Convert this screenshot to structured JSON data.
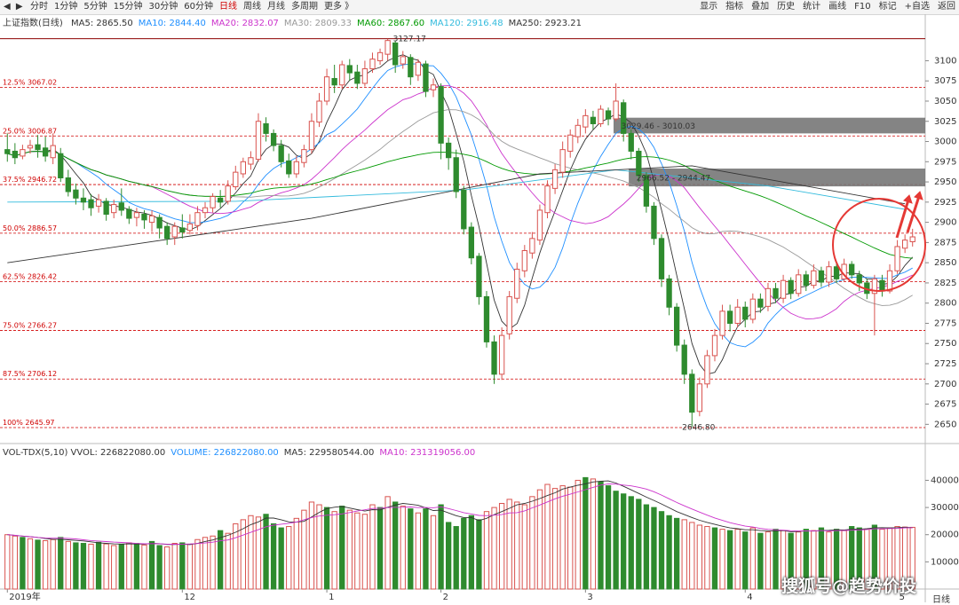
{
  "toolbar": {
    "nav_back": "◀",
    "nav_fwd": "▶",
    "periods": [
      "分时",
      "1分钟",
      "5分钟",
      "15分钟",
      "30分钟",
      "60分钟",
      "日线",
      "周线",
      "月线",
      "多周期",
      "更多 》"
    ],
    "active_period": 6,
    "tools": [
      "显示",
      "指标",
      "叠加",
      "历史",
      "统计",
      "画线",
      "F10",
      "标记",
      "+自选",
      "返回"
    ]
  },
  "price_legend": {
    "title": "上证指数(日线)",
    "items": [
      {
        "label": "MA5: 2865.50",
        "color": "#333333"
      },
      {
        "label": "MA10: 2844.40",
        "color": "#1f8fff"
      },
      {
        "label": "MA20: 2832.07",
        "color": "#cc33cc"
      },
      {
        "label": "MA30: 2809.33",
        "color": "#999999"
      },
      {
        "label": "MA60: 2867.60",
        "color": "#009900"
      },
      {
        "label": "MA120: 2916.48",
        "color": "#33bbdd"
      },
      {
        "label": "MA250: 2923.21",
        "color": "#333333"
      }
    ]
  },
  "volume_legend": {
    "items": [
      {
        "label": "VOL-TDX(5,10)  VVOL: 226822080.00",
        "color": "#333333"
      },
      {
        "label": "VOLUME: 226822080.00",
        "color": "#1f8fff"
      },
      {
        "label": "MA5: 229580544.00",
        "color": "#333333"
      },
      {
        "label": "MA10: 231319056.00",
        "color": "#cc33cc"
      }
    ]
  },
  "watermark": "搜狐号@趋势价投",
  "frequency_label": "日线",
  "colors": {
    "up": "#d9534f",
    "down": "#2e8b2e",
    "ref_line": "#d00000",
    "zone": "#777777",
    "circle": "#e53935"
  },
  "chart_data": [
    {
      "type": "candlestick",
      "title": "上证指数(日线)",
      "ylim": [
        2635,
        3140
      ],
      "y_ticks": [
        2650,
        2675,
        2700,
        2725,
        2750,
        2775,
        2800,
        2825,
        2850,
        2875,
        2900,
        2925,
        2950,
        2975,
        3000,
        3025,
        3050,
        3075,
        3100
      ],
      "x_labels": [
        {
          "label": "2019年",
          "index": 0
        },
        {
          "label": "12",
          "index": 23
        },
        {
          "label": "1",
          "index": 42
        },
        {
          "label": "2",
          "index": 57
        },
        {
          "label": "3",
          "index": 76
        },
        {
          "label": "4",
          "index": 97
        },
        {
          "label": "5",
          "index": 117
        }
      ],
      "fib_levels": [
        {
          "label": "12.5% 3067.02",
          "value": 3067.02
        },
        {
          "label": "25.0% 3006.87",
          "value": 3006.87
        },
        {
          "label": "37.5% 2946.72",
          "value": 2946.72
        },
        {
          "label": "50.0% 2886.57",
          "value": 2886.57
        },
        {
          "label": "62.5% 2826.42",
          "value": 2826.42
        },
        {
          "label": "75.0% 2766.27",
          "value": 2766.27
        },
        {
          "label": "87.5% 2706.12",
          "value": 2706.12
        },
        {
          "label": "100% 2645.97",
          "value": 2645.97
        }
      ],
      "top_level": 3127.17,
      "annotations": [
        {
          "text": "3127.17",
          "index": 50,
          "value": 3127.17
        },
        {
          "text": "3029.46 - 3010.03",
          "index": 80,
          "value": 3019
        },
        {
          "text": "2966.52 - 2944.47",
          "index": 82,
          "value": 2955
        },
        {
          "text": "2646.80",
          "index": 88,
          "value": 2646.8
        }
      ],
      "zones": [
        {
          "from_index": 80,
          "top": 3029.46,
          "bottom": 3010.03
        },
        {
          "from_index": 82,
          "top": 2966.52,
          "bottom": 2944.47
        }
      ],
      "candles": [
        [
          2990,
          2985,
          3010,
          2975
        ],
        [
          2988,
          2980,
          2998,
          2972
        ],
        [
          2982,
          2990,
          2996,
          2978
        ],
        [
          2992,
          2995,
          3002,
          2985
        ],
        [
          2996,
          2990,
          3008,
          2980
        ],
        [
          2992,
          2982,
          3006,
          2975
        ],
        [
          2980,
          2995,
          3010,
          2972
        ],
        [
          2985,
          2955,
          2992,
          2950
        ],
        [
          2955,
          2938,
          2965,
          2932
        ],
        [
          2940,
          2930,
          2948,
          2922
        ],
        [
          2930,
          2925,
          2942,
          2915
        ],
        [
          2928,
          2918,
          2935,
          2908
        ],
        [
          2920,
          2928,
          2935,
          2912
        ],
        [
          2926,
          2910,
          2930,
          2902
        ],
        [
          2912,
          2922,
          2928,
          2905
        ],
        [
          2924,
          2915,
          2942,
          2908
        ],
        [
          2916,
          2905,
          2920,
          2898
        ],
        [
          2906,
          2912,
          2918,
          2895
        ],
        [
          2910,
          2903,
          2915,
          2892
        ],
        [
          2900,
          2908,
          2915,
          2888
        ],
        [
          2906,
          2893,
          2910,
          2880
        ],
        [
          2895,
          2880,
          2900,
          2872
        ],
        [
          2882,
          2895,
          2900,
          2872
        ],
        [
          2893,
          2888,
          2910,
          2880
        ],
        [
          2890,
          2898,
          2910,
          2885
        ],
        [
          2896,
          2912,
          2920,
          2890
        ],
        [
          2912,
          2918,
          2925,
          2905
        ],
        [
          2918,
          2932,
          2936,
          2912
        ],
        [
          2930,
          2925,
          2940,
          2918
        ],
        [
          2926,
          2945,
          2952,
          2922
        ],
        [
          2944,
          2962,
          2970,
          2940
        ],
        [
          2960,
          2975,
          2980,
          2955
        ],
        [
          2972,
          2980,
          2988,
          2965
        ],
        [
          2978,
          3025,
          3035,
          2975
        ],
        [
          3022,
          3010,
          3030,
          3000
        ],
        [
          3010,
          2995,
          3015,
          2988
        ],
        [
          2995,
          2975,
          3002,
          2968
        ],
        [
          2976,
          2960,
          2985,
          2955
        ],
        [
          2960,
          2975,
          2982,
          2955
        ],
        [
          2974,
          2990,
          2996,
          2968
        ],
        [
          2990,
          3025,
          3035,
          2985
        ],
        [
          3024,
          3050,
          3060,
          3018
        ],
        [
          3050,
          3080,
          3090,
          3045
        ],
        [
          3078,
          3070,
          3095,
          3060
        ],
        [
          3070,
          3095,
          3100,
          3065
        ],
        [
          3094,
          3085,
          3102,
          3075
        ],
        [
          3086,
          3072,
          3095,
          3065
        ],
        [
          3072,
          3090,
          3100,
          3068
        ],
        [
          3090,
          3102,
          3110,
          3085
        ],
        [
          3100,
          3110,
          3115,
          3095
        ],
        [
          3108,
          3125,
          3127,
          3100
        ],
        [
          3122,
          3095,
          3125,
          3085
        ],
        [
          3096,
          3105,
          3112,
          3090
        ],
        [
          3104,
          3080,
          3108,
          3070
        ],
        [
          3082,
          3098,
          3102,
          3075
        ],
        [
          3096,
          3062,
          3100,
          3055
        ],
        [
          3064,
          3070,
          3078,
          3055
        ],
        [
          3068,
          2998,
          3072,
          2978
        ],
        [
          2998,
          2980,
          3005,
          2965
        ],
        [
          2980,
          2938,
          2990,
          2930
        ],
        [
          2940,
          2892,
          2945,
          2885
        ],
        [
          2894,
          2856,
          2900,
          2848
        ],
        [
          2858,
          2808,
          2862,
          2798
        ],
        [
          2808,
          2752,
          2815,
          2745
        ],
        [
          2752,
          2712,
          2760,
          2700
        ],
        [
          2712,
          2760,
          2770,
          2705
        ],
        [
          2762,
          2808,
          2815,
          2755
        ],
        [
          2806,
          2842,
          2850,
          2800
        ],
        [
          2840,
          2865,
          2872,
          2832
        ],
        [
          2862,
          2880,
          2888,
          2855
        ],
        [
          2878,
          2915,
          2922,
          2872
        ],
        [
          2912,
          2945,
          2952,
          2905
        ],
        [
          2942,
          2965,
          2972,
          2935
        ],
        [
          2962,
          2990,
          3000,
          2955
        ],
        [
          2988,
          3008,
          3015,
          2980
        ],
        [
          3006,
          3020,
          3028,
          2998
        ],
        [
          3018,
          3032,
          3040,
          3010
        ],
        [
          3030,
          3022,
          3038,
          3015
        ],
        [
          3022,
          3040,
          3045,
          3018
        ],
        [
          3038,
          3028,
          3042,
          3020
        ],
        [
          3028,
          3050,
          3072,
          3025
        ],
        [
          3048,
          3010,
          3052,
          3000
        ],
        [
          3010,
          2988,
          3015,
          2978
        ],
        [
          2988,
          2958,
          2992,
          2950
        ],
        [
          2958,
          2920,
          2962,
          2912
        ],
        [
          2920,
          2880,
          2925,
          2872
        ],
        [
          2880,
          2830,
          2885,
          2820
        ],
        [
          2830,
          2795,
          2835,
          2785
        ],
        [
          2795,
          2748,
          2800,
          2740
        ],
        [
          2748,
          2712,
          2755,
          2700
        ],
        [
          2712,
          2665,
          2718,
          2646.8
        ],
        [
          2666,
          2700,
          2708,
          2660
        ],
        [
          2700,
          2735,
          2742,
          2695
        ],
        [
          2735,
          2760,
          2768,
          2728
        ],
        [
          2760,
          2790,
          2798,
          2755
        ],
        [
          2790,
          2775,
          2798,
          2765
        ],
        [
          2775,
          2795,
          2805,
          2770
        ],
        [
          2795,
          2780,
          2802,
          2770
        ],
        [
          2780,
          2805,
          2812,
          2775
        ],
        [
          2805,
          2795,
          2812,
          2788
        ],
        [
          2796,
          2818,
          2825,
          2790
        ],
        [
          2818,
          2806,
          2825,
          2800
        ],
        [
          2806,
          2828,
          2835,
          2800
        ],
        [
          2828,
          2812,
          2832,
          2805
        ],
        [
          2812,
          2835,
          2842,
          2808
        ],
        [
          2835,
          2822,
          2840,
          2815
        ],
        [
          2822,
          2840,
          2848,
          2818
        ],
        [
          2840,
          2826,
          2845,
          2820
        ],
        [
          2826,
          2845,
          2852,
          2820
        ],
        [
          2845,
          2830,
          2850,
          2825
        ],
        [
          2830,
          2848,
          2855,
          2826
        ],
        [
          2848,
          2835,
          2852,
          2830
        ],
        [
          2835,
          2825,
          2840,
          2815
        ],
        [
          2825,
          2812,
          2830,
          2805
        ],
        [
          2812,
          2830,
          2835,
          2760
        ],
        [
          2828,
          2815,
          2835,
          2808
        ],
        [
          2815,
          2840,
          2848,
          2812
        ],
        [
          2840,
          2870,
          2878,
          2836
        ],
        [
          2868,
          2878,
          2885,
          2862
        ],
        [
          2876,
          2882,
          2892,
          2870
        ]
      ],
      "up_arrows": 2
    },
    {
      "type": "bar",
      "title": "VOL-TDX(5,10)",
      "ylim": [
        0,
        47000
      ],
      "y_ticks": [
        10000,
        20000,
        30000,
        40000
      ],
      "values": [
        20000,
        19500,
        19000,
        18500,
        18000,
        17800,
        18200,
        19000,
        17500,
        17000,
        16800,
        16500,
        17200,
        16600,
        16000,
        16500,
        17000,
        16800,
        16200,
        17500,
        16000,
        15500,
        16800,
        17000,
        16500,
        18200,
        19000,
        19500,
        21500,
        20500,
        24000,
        25500,
        27000,
        26500,
        27500,
        24000,
        22500,
        23000,
        26000,
        29000,
        32000,
        31000,
        30000,
        28500,
        30500,
        29000,
        28000,
        27500,
        31000,
        30000,
        34000,
        32000,
        30500,
        29500,
        28000,
        29500,
        27000,
        31000,
        24500,
        23000,
        26000,
        27000,
        25500,
        28500,
        30000,
        31500,
        33000,
        32000,
        31000,
        34000,
        36500,
        38500,
        37000,
        38000,
        37500,
        40000,
        41000,
        40500,
        39500,
        38000,
        36000,
        35000,
        34000,
        33000,
        31000,
        30000,
        28500,
        27000,
        26000,
        25500,
        24500,
        23500,
        23000,
        22500,
        22000,
        21500,
        22000,
        21000,
        22500,
        20500,
        21000,
        22000,
        21500,
        20500,
        21000,
        22000,
        21500,
        22500,
        21000,
        22000,
        21500,
        23000,
        22500,
        22000,
        23500,
        22000,
        22500,
        23000,
        22800,
        22700
      ],
      "up_flags": [
        1,
        1,
        0,
        1,
        0,
        1,
        1,
        0,
        1,
        0,
        0,
        1,
        0,
        1,
        1,
        0,
        1,
        0,
        1,
        0,
        0,
        1,
        1,
        0,
        1,
        1,
        1,
        1,
        0,
        1,
        1,
        1,
        1,
        1,
        0,
        0,
        0,
        1,
        1,
        1,
        1,
        1,
        0,
        1,
        0,
        1,
        1,
        1,
        1,
        0,
        1,
        0,
        1,
        0,
        1,
        0,
        1,
        0,
        0,
        0,
        0,
        0,
        0,
        1,
        1,
        1,
        1,
        1,
        1,
        1,
        1,
        1,
        1,
        1,
        1,
        1,
        0,
        1,
        0,
        0,
        0,
        0,
        0,
        0,
        0,
        0,
        0,
        0,
        0,
        1,
        1,
        1,
        1,
        0,
        1,
        0,
        1,
        0,
        1,
        0,
        1,
        0,
        1,
        0,
        1,
        0,
        1,
        0,
        1,
        0,
        1,
        0,
        0,
        1,
        0,
        1,
        1,
        1,
        1,
        1
      ]
    }
  ]
}
